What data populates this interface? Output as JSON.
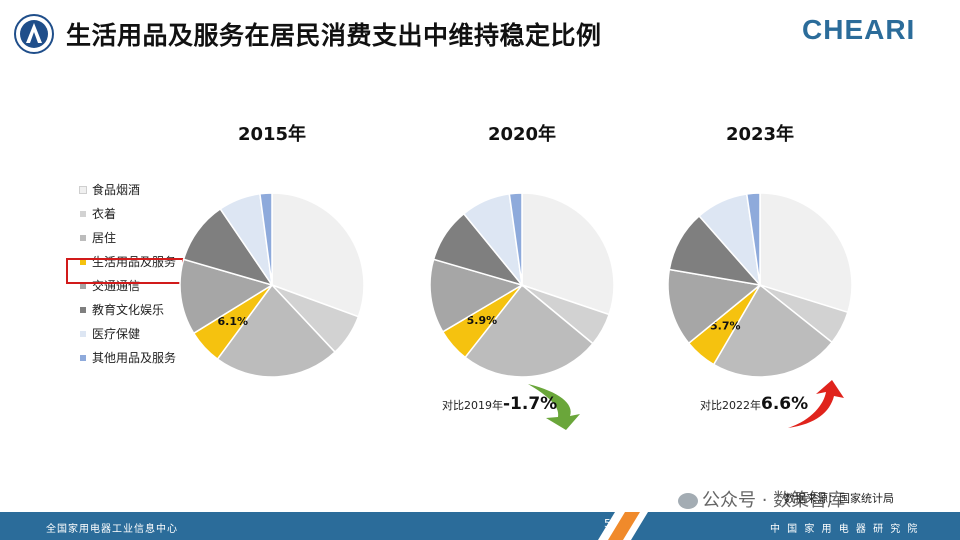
{
  "header": {
    "title": "生活用品及服务在居民消费支出中维持稳定比例",
    "brand_logo_text": "CHEARI"
  },
  "legend": {
    "items": [
      {
        "label": "食品烟酒",
        "color": "#f0f0f0"
      },
      {
        "label": "衣着",
        "color": "#d2d2d2"
      },
      {
        "label": "居住",
        "color": "#bcbcbc"
      },
      {
        "label": "生活用品及服务",
        "color": "#f5c20f"
      },
      {
        "label": "交通通信",
        "color": "#a6a6a6"
      },
      {
        "label": "教育文化娱乐",
        "color": "#7f7f7f"
      },
      {
        "label": "医疗保健",
        "color": "#dde6f3"
      },
      {
        "label": "其他用品及服务",
        "color": "#8eaadb"
      }
    ]
  },
  "chart_data": [
    {
      "type": "pie",
      "title": "2015年",
      "categories": [
        "食品烟酒",
        "衣着",
        "居住",
        "生活用品及服务",
        "交通通信",
        "教育文化娱乐",
        "医疗保健",
        "其他用品及服务"
      ],
      "values": [
        30.6,
        7.4,
        22.1,
        6.1,
        13.3,
        11.0,
        7.4,
        2.1
      ],
      "data_labels": [
        "",
        "",
        "",
        "6.1%",
        "",
        "",
        "",
        ""
      ]
    },
    {
      "type": "pie",
      "title": "2020年",
      "categories": [
        "食品烟酒",
        "衣着",
        "居住",
        "生活用品及服务",
        "交通通信",
        "教育文化娱乐",
        "医疗保健",
        "其他用品及服务"
      ],
      "values": [
        30.2,
        5.8,
        24.6,
        5.9,
        13.0,
        9.6,
        8.7,
        2.2
      ],
      "data_labels": [
        "",
        "",
        "",
        "5.9%",
        "",
        "",
        "",
        ""
      ]
    },
    {
      "type": "pie",
      "title": "2023年",
      "categories": [
        "食品烟酒",
        "衣着",
        "居住",
        "生活用品及服务",
        "交通通信",
        "教育文化娱乐",
        "医疗保健",
        "其他用品及服务"
      ],
      "values": [
        29.8,
        5.9,
        22.7,
        5.7,
        13.6,
        10.8,
        9.2,
        2.3
      ],
      "data_labels": [
        "",
        "",
        "",
        "5.7%",
        "",
        "",
        "",
        ""
      ]
    }
  ],
  "comparisons": [
    {
      "prefix": "对比2019年",
      "value": "-1.7%",
      "direction": "down",
      "color": "#6aa63a"
    },
    {
      "prefix": "对比2022年",
      "value": "6.6%",
      "direction": "up",
      "color": "#e0231c"
    }
  ],
  "footer": {
    "source": "数据来源：国家统计局",
    "wechat": "公众号 · 数策智库",
    "left_text": "全国家用电器工业信息中心",
    "right_text": "中 国 家 用 电 器 研 究 院",
    "page_number": "5"
  },
  "colors": {
    "footer_bar": "#2b6c9a",
    "footer_accent": "#f08a2b",
    "highlight_box": "#d11a1a"
  }
}
